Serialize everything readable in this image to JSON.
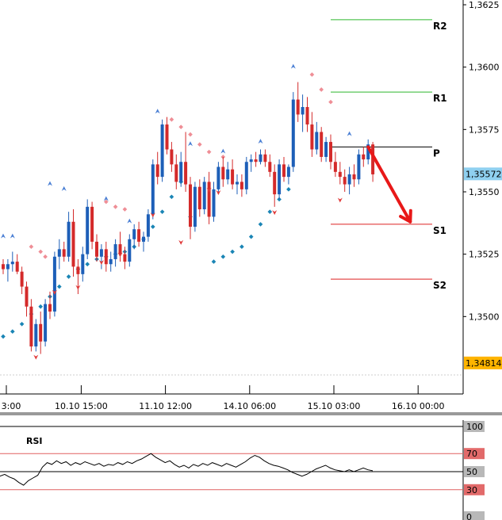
{
  "chart_data": [
    {
      "type": "candlestick",
      "instrument_pair_note": "",
      "ylim": [
        1.3475,
        1.3625
      ],
      "y_ticks": [
        "1,3625",
        "1,3600",
        "1,3575",
        "1,3550",
        "1,3525",
        "1,3500"
      ],
      "y_tick_values": [
        1.3625,
        1.36,
        1.3575,
        1.355,
        1.3525,
        1.35
      ],
      "x_ticks": [
        "3:00",
        "10.10 15:00",
        "11.10 12:00",
        "14.10 06:00",
        "15.10 03:00",
        "16.10 00:00"
      ],
      "x_tick_index": [
        0,
        16,
        34,
        52,
        70,
        88
      ],
      "current_price_label": "1,35572",
      "current_price": 1.35572,
      "low_marker_label": "1,34814",
      "low_marker": 1.34814,
      "pivot_levels": [
        {
          "label": "R2",
          "value": 1.3619,
          "color": "#2eb82e"
        },
        {
          "label": "R1",
          "value": 1.359,
          "color": "#2eb82e"
        },
        {
          "label": "P",
          "value": 1.3568,
          "color": "#000000"
        },
        {
          "label": "S1",
          "value": 1.3537,
          "color": "#dd2222"
        },
        {
          "label": "S2",
          "value": 1.3515,
          "color": "#dd2222"
        }
      ],
      "candles": [
        [
          1.3521,
          1.3523,
          1.3517,
          1.3519
        ],
        [
          1.3519,
          1.3523,
          1.3514,
          1.3521
        ],
        [
          1.3521,
          1.3526,
          1.3518,
          1.3522
        ],
        [
          1.3522,
          1.3525,
          1.3517,
          1.3518
        ],
        [
          1.3518,
          1.352,
          1.3509,
          1.3512
        ],
        [
          1.3512,
          1.3514,
          1.35,
          1.3504
        ],
        [
          1.3504,
          1.3507,
          1.3486,
          1.3488
        ],
        [
          1.3488,
          1.3499,
          1.3486,
          1.3497
        ],
        [
          1.3497,
          1.3502,
          1.3485,
          1.349
        ],
        [
          1.349,
          1.3507,
          1.3488,
          1.3505
        ],
        [
          1.3505,
          1.351,
          1.3499,
          1.3502
        ],
        [
          1.3502,
          1.3526,
          1.35,
          1.3524
        ],
        [
          1.3524,
          1.3531,
          1.3519,
          1.3527
        ],
        [
          1.3527,
          1.353,
          1.3522,
          1.3524
        ],
        [
          1.3524,
          1.3542,
          1.3522,
          1.3538
        ],
        [
          1.3538,
          1.3543,
          1.3516,
          1.352
        ],
        [
          1.352,
          1.3523,
          1.3509,
          1.3517
        ],
        [
          1.3517,
          1.3528,
          1.3514,
          1.3525
        ],
        [
          1.3525,
          1.3547,
          1.3523,
          1.3544
        ],
        [
          1.3544,
          1.3546,
          1.3527,
          1.353
        ],
        [
          1.353,
          1.3533,
          1.3522,
          1.3524
        ],
        [
          1.3524,
          1.3529,
          1.3519,
          1.3527
        ],
        [
          1.3527,
          1.353,
          1.3518,
          1.3521
        ],
        [
          1.3521,
          1.3526,
          1.3518,
          1.3523
        ],
        [
          1.3523,
          1.3531,
          1.352,
          1.3529
        ],
        [
          1.3529,
          1.3534,
          1.3522,
          1.3525
        ],
        [
          1.3525,
          1.3528,
          1.3519,
          1.3522
        ],
        [
          1.3522,
          1.3533,
          1.352,
          1.3531
        ],
        [
          1.3531,
          1.3537,
          1.3527,
          1.3535
        ],
        [
          1.3535,
          1.3538,
          1.3528,
          1.353
        ],
        [
          1.353,
          1.3534,
          1.3526,
          1.3532
        ],
        [
          1.3532,
          1.3543,
          1.353,
          1.3541
        ],
        [
          1.3541,
          1.3563,
          1.3539,
          1.3561
        ],
        [
          1.3561,
          1.3566,
          1.3553,
          1.3556
        ],
        [
          1.3556,
          1.3579,
          1.3554,
          1.3577
        ],
        [
          1.3577,
          1.358,
          1.3565,
          1.3567
        ],
        [
          1.3567,
          1.357,
          1.3558,
          1.3561
        ],
        [
          1.3561,
          1.3565,
          1.3551,
          1.3554
        ],
        [
          1.3554,
          1.3566,
          1.3552,
          1.3562
        ],
        [
          1.3562,
          1.3574,
          1.355,
          1.3553
        ],
        [
          1.3553,
          1.3556,
          1.3531,
          1.3536
        ],
        [
          1.3536,
          1.3554,
          1.3534,
          1.3552
        ],
        [
          1.3552,
          1.3555,
          1.354,
          1.3543
        ],
        [
          1.3543,
          1.3556,
          1.3541,
          1.3554
        ],
        [
          1.3554,
          1.3558,
          1.3537,
          1.354
        ],
        [
          1.354,
          1.3554,
          1.3538,
          1.3551
        ],
        [
          1.3551,
          1.3562,
          1.3549,
          1.356
        ],
        [
          1.356,
          1.3564,
          1.3552,
          1.3555
        ],
        [
          1.3555,
          1.3562,
          1.3553,
          1.3559
        ],
        [
          1.3559,
          1.3563,
          1.3551,
          1.3553
        ],
        [
          1.3553,
          1.3557,
          1.3549,
          1.3554
        ],
        [
          1.3554,
          1.3557,
          1.3548,
          1.3551
        ],
        [
          1.3551,
          1.3564,
          1.3549,
          1.3562
        ],
        [
          1.3562,
          1.3565,
          1.3558,
          1.3563
        ],
        [
          1.3563,
          1.3566,
          1.356,
          1.3562
        ],
        [
          1.3562,
          1.3567,
          1.3561,
          1.3565
        ],
        [
          1.3565,
          1.3567,
          1.356,
          1.3562
        ],
        [
          1.3562,
          1.3565,
          1.3556,
          1.3558
        ],
        [
          1.3558,
          1.3561,
          1.3544,
          1.3549
        ],
        [
          1.3549,
          1.3563,
          1.3547,
          1.3561
        ],
        [
          1.3561,
          1.3564,
          1.3554,
          1.3556
        ],
        [
          1.3556,
          1.3561,
          1.3553,
          1.356
        ],
        [
          1.356,
          1.359,
          1.3558,
          1.3587
        ],
        [
          1.3587,
          1.3594,
          1.3578,
          1.3581
        ],
        [
          1.3581,
          1.3589,
          1.3574,
          1.3584
        ],
        [
          1.3584,
          1.3588,
          1.3574,
          1.3577
        ],
        [
          1.3577,
          1.3582,
          1.3564,
          1.3567
        ],
        [
          1.3567,
          1.3578,
          1.3565,
          1.3574
        ],
        [
          1.3574,
          1.3576,
          1.3562,
          1.3564
        ],
        [
          1.3564,
          1.3572,
          1.3562,
          1.357
        ],
        [
          1.357,
          1.3573,
          1.3559,
          1.3562
        ],
        [
          1.3562,
          1.3566,
          1.3556,
          1.3558
        ],
        [
          1.3558,
          1.3562,
          1.3553,
          1.3556
        ],
        [
          1.3556,
          1.3559,
          1.355,
          1.3553
        ],
        [
          1.3553,
          1.356,
          1.3549,
          1.3557
        ],
        [
          1.3557,
          1.3561,
          1.3552,
          1.3555
        ],
        [
          1.3555,
          1.3567,
          1.3553,
          1.3565
        ],
        [
          1.3565,
          1.3568,
          1.356,
          1.3563
        ],
        [
          1.3563,
          1.3571,
          1.3561,
          1.3569
        ],
        [
          1.3569,
          1.357,
          1.3554,
          1.3557
        ]
      ],
      "sar_dots": [
        [
          0,
          1.3492
        ],
        [
          2,
          1.3494
        ],
        [
          4,
          1.3497
        ],
        [
          6,
          1.3501
        ],
        [
          8,
          1.3504
        ],
        [
          10,
          1.3508
        ],
        [
          12,
          1.3512
        ],
        [
          14,
          1.3516
        ],
        [
          16,
          1.3519
        ],
        [
          18,
          1.3521
        ],
        [
          20,
          1.3523
        ],
        [
          22,
          1.3524
        ],
        [
          24,
          1.3525
        ],
        [
          26,
          1.3526
        ],
        [
          28,
          1.3528
        ],
        [
          30,
          1.3531
        ],
        [
          32,
          1.3536
        ],
        [
          34,
          1.3542
        ],
        [
          36,
          1.3548
        ],
        [
          38,
          1.3554
        ],
        [
          40,
          1.354
        ],
        [
          45,
          1.3522
        ],
        [
          47,
          1.3524
        ],
        [
          49,
          1.3526
        ],
        [
          51,
          1.3528
        ],
        [
          53,
          1.3532
        ],
        [
          55,
          1.3537
        ],
        [
          57,
          1.3542
        ],
        [
          59,
          1.3547
        ],
        [
          61,
          1.3551
        ]
      ],
      "down_dots": [
        [
          6,
          1.3528
        ],
        [
          8,
          1.3526
        ],
        [
          9,
          1.3524
        ],
        [
          22,
          1.3546
        ],
        [
          24,
          1.3544
        ],
        [
          26,
          1.3543
        ],
        [
          36,
          1.3579
        ],
        [
          38,
          1.3576
        ],
        [
          40,
          1.3573
        ],
        [
          42,
          1.3569
        ],
        [
          44,
          1.3566
        ],
        [
          47,
          1.3564
        ],
        [
          66,
          1.3597
        ],
        [
          68,
          1.3591
        ],
        [
          70,
          1.3586
        ]
      ],
      "arrow_up_markers": [
        [
          0,
          1.3532
        ],
        [
          2,
          1.3532
        ],
        [
          10,
          1.3553
        ],
        [
          13,
          1.3551
        ],
        [
          22,
          1.3547
        ],
        [
          27,
          1.3538
        ],
        [
          33,
          1.3582
        ],
        [
          40,
          1.3569
        ],
        [
          47,
          1.3566
        ],
        [
          55,
          1.357
        ],
        [
          62,
          1.36
        ],
        [
          74,
          1.3573
        ]
      ],
      "arrow_down_markers": [
        [
          7,
          1.3484
        ],
        [
          11,
          1.351
        ],
        [
          16,
          1.3512
        ],
        [
          21,
          1.3522
        ],
        [
          25,
          1.3525
        ],
        [
          32,
          1.3541
        ],
        [
          38,
          1.353
        ],
        [
          44,
          1.3551
        ],
        [
          46,
          1.355
        ],
        [
          58,
          1.3542
        ],
        [
          72,
          1.3547
        ]
      ],
      "forecast_arrow_from": [
        78,
        1.3568
      ],
      "forecast_arrow_to": [
        87,
        1.3538
      ]
    },
    {
      "type": "line",
      "title": "RSI",
      "ylim": [
        0,
        100
      ],
      "y_ticks": [
        "100",
        "70",
        "50",
        "30",
        "0"
      ],
      "y_tick_values": [
        100,
        70,
        50,
        30,
        0
      ],
      "levels": [
        70,
        50,
        30
      ],
      "values": [
        45,
        47,
        44,
        42,
        38,
        35,
        40,
        43,
        46,
        55,
        60,
        58,
        62,
        59,
        61,
        57,
        60,
        58,
        61,
        59,
        57,
        59,
        56,
        58,
        57,
        60,
        58,
        61,
        59,
        62,
        64,
        67,
        70,
        66,
        63,
        60,
        62,
        58,
        55,
        57,
        54,
        58,
        56,
        59,
        57,
        60,
        58,
        56,
        59,
        57,
        55,
        58,
        61,
        65,
        68,
        66,
        62,
        59,
        57,
        56,
        54,
        52,
        49,
        47,
        45,
        47,
        50,
        53,
        55,
        57,
        54,
        52,
        51,
        50,
        52,
        50,
        52,
        54,
        52,
        51
      ]
    }
  ],
  "colors": {
    "bull": "#1d5fb8",
    "bear": "#d42a2a",
    "sar": "#1a85b5",
    "down_dot": "#ef8e96",
    "arrow_up": "#4a7fd4",
    "arrow_down": "#e03a3a",
    "forecast": "#e81818",
    "price_badge": "#8fd0f0",
    "low_badge": "#ffb400",
    "rsi_level": "#e06060",
    "rsi_line": "#000000"
  }
}
